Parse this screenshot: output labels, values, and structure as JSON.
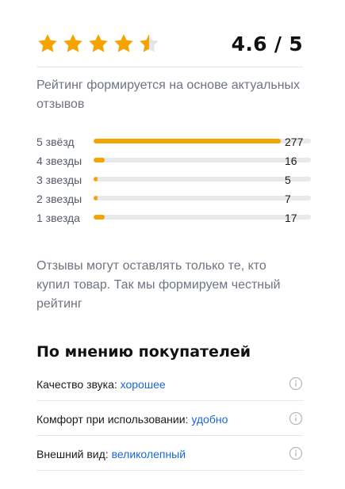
{
  "rating": {
    "score_text": "4.6 / 5",
    "value": 4.6,
    "max": 5,
    "stars": [
      {
        "icon": "star-full-icon",
        "fill": 1
      },
      {
        "icon": "star-full-icon",
        "fill": 1
      },
      {
        "icon": "star-full-icon",
        "fill": 1
      },
      {
        "icon": "star-full-icon",
        "fill": 1
      },
      {
        "icon": "star-half-icon",
        "fill": 0.5
      }
    ],
    "star_color": "#f5a300",
    "star_empty_color": "#e3e5e8",
    "description": "Рейтинг формируется на основе актуальных отзывов"
  },
  "histogram": [
    {
      "label": "5 звёзд",
      "count": "277",
      "fraction": 0.86
    },
    {
      "label": "4 звезды",
      "count": "16",
      "fraction": 0.05
    },
    {
      "label": "3 звезды",
      "count": "5",
      "fraction": 0.02
    },
    {
      "label": "2 звезды",
      "count": "7",
      "fraction": 0.02
    },
    {
      "label": "1 звезда",
      "count": "17",
      "fraction": 0.05
    }
  ],
  "note": "Отзывы могут оставлять только те, кто купил товар. Так мы формируем честный рейтинг",
  "opinions": {
    "title": "По мнению покупателей",
    "items": [
      {
        "label": "Качество звука:",
        "value": "хорошее",
        "icon": "info-icon"
      },
      {
        "label": "Комфорт при использовании:",
        "value": "удобно",
        "icon": "info-icon"
      },
      {
        "label": "Внешний вид:",
        "value": "великолепный",
        "icon": "info-icon"
      }
    ]
  },
  "colors": {
    "accent": "#f5a300",
    "link": "#1a66d9",
    "muted_text": "#6e7480",
    "track": "#e7e9ec"
  }
}
